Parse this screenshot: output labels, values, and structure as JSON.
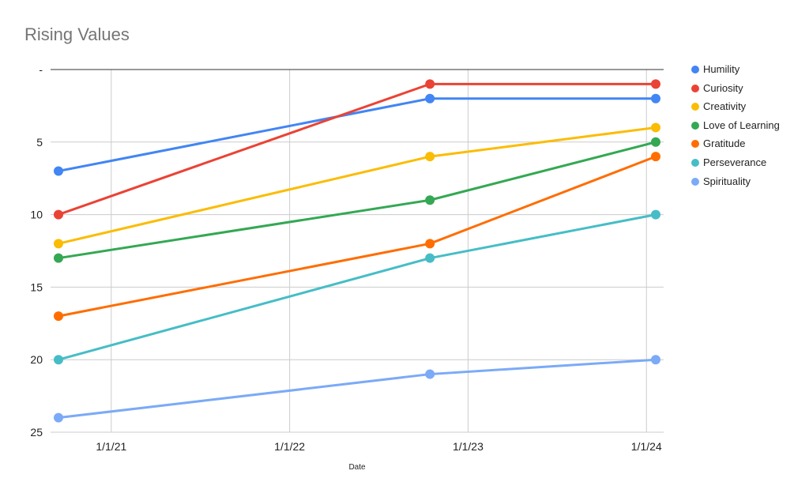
{
  "chart_data": {
    "type": "line",
    "title": "Rising Values",
    "xlabel": "Date",
    "ylabel": "",
    "x_type": "date",
    "xlim": [
      "2020-09-15",
      "2024-01-20"
    ],
    "ylim": [
      25,
      0
    ],
    "y_reversed": true,
    "x_ticks": [
      "1/1/21",
      "1/1/22",
      "1/1/23",
      "1/1/24"
    ],
    "x_tick_dates": [
      "2021-01-01",
      "2022-01-01",
      "2023-01-01",
      "2024-01-01"
    ],
    "y_ticks": [
      "-",
      "5",
      "10",
      "15",
      "20",
      "25"
    ],
    "y_tick_values": [
      0,
      5,
      10,
      15,
      20,
      25
    ],
    "grid": true,
    "legend_position": "right",
    "x": [
      "2020-09-15",
      "2022-10-15",
      "2024-01-20"
    ],
    "series": [
      {
        "name": "Humility",
        "color": "#4285f4",
        "values": [
          7,
          2,
          2
        ]
      },
      {
        "name": "Curiosity",
        "color": "#ea4335",
        "values": [
          10,
          1,
          1
        ]
      },
      {
        "name": "Creativity",
        "color": "#fbbc04",
        "values": [
          12,
          6,
          4
        ]
      },
      {
        "name": "Love of Learning",
        "color": "#34a853",
        "values": [
          13,
          9,
          5
        ]
      },
      {
        "name": "Gratitude",
        "color": "#ff6d01",
        "values": [
          17,
          12,
          6
        ]
      },
      {
        "name": "Perseverance",
        "color": "#46bdc6",
        "values": [
          20,
          13,
          10
        ]
      },
      {
        "name": "Spirituality",
        "color": "#7baaf7",
        "values": [
          24,
          21,
          20
        ]
      }
    ]
  }
}
